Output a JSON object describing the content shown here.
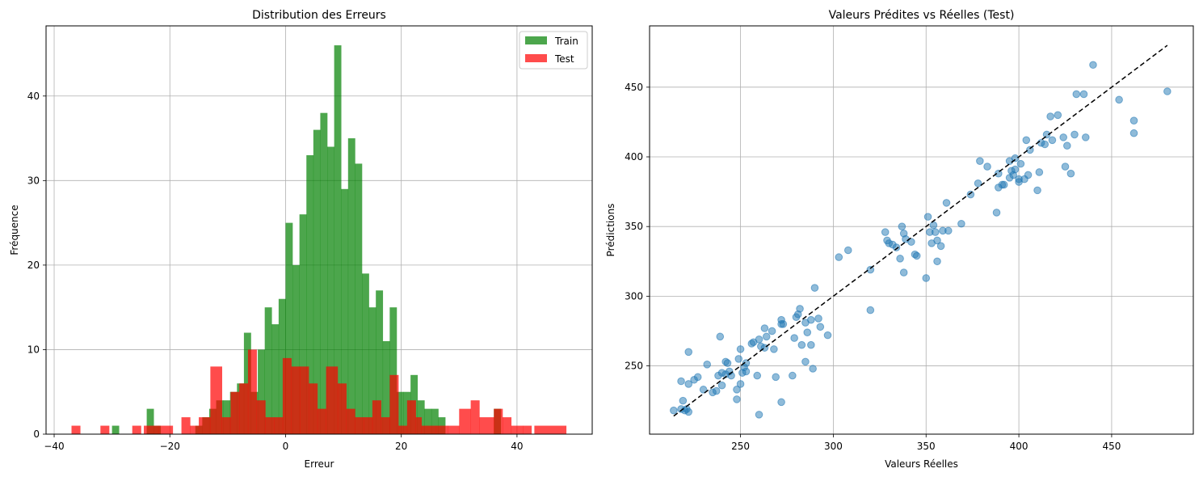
{
  "chart_data": [
    {
      "type": "histogram",
      "title": "Distribution des Erreurs",
      "xlabel": "Erreur",
      "ylabel": "Fréquence",
      "xlim": [
        -41.4,
        53.0
      ],
      "ylim": [
        0,
        48.3
      ],
      "xticks": [
        -40,
        -20,
        0,
        20,
        40
      ],
      "xtick_labels": [
        "−40",
        "−20",
        "0",
        "20",
        "40"
      ],
      "yticks": [
        0,
        10,
        20,
        30,
        40
      ],
      "ytick_labels": [
        "0",
        "10",
        "20",
        "30",
        "40"
      ],
      "grid": true,
      "legend_position": "top-right",
      "series": [
        {
          "name": "Train",
          "color": "#008000",
          "opacity": 0.7,
          "bin_start": -30.0,
          "bin_width": 1.2,
          "counts": [
            1,
            0,
            0,
            0,
            0,
            3,
            1,
            0,
            0,
            0,
            0,
            0,
            1,
            2,
            3,
            4,
            4,
            5,
            6,
            12,
            5,
            10,
            15,
            13,
            16,
            25,
            20,
            26,
            33,
            36,
            38,
            34,
            46,
            29,
            35,
            32,
            19,
            15,
            17,
            11,
            15,
            5,
            5,
            7,
            4,
            3,
            3,
            2,
            0,
            0,
            0,
            0,
            0,
            0,
            0,
            3
          ]
        },
        {
          "name": "Test",
          "color": "#ff0000",
          "opacity": 0.7,
          "bins": [
            [
              -37,
              -35.5,
              1
            ],
            [
              -32,
              -30.5,
              1
            ],
            [
              -26.5,
              -25,
              1
            ],
            [
              -24.5,
              -22,
              1
            ],
            [
              -22,
              -19.5,
              1
            ],
            [
              -18,
              -16.5,
              2
            ],
            [
              -16.5,
              -15,
              1
            ],
            [
              -15,
              -13,
              2
            ],
            [
              -13,
              -11,
              8
            ],
            [
              -11,
              -9.5,
              2
            ],
            [
              -9.5,
              -8,
              5
            ],
            [
              -8,
              -6.5,
              6
            ],
            [
              -6.5,
              -5,
              10
            ],
            [
              -5,
              -3.5,
              4
            ],
            [
              -3.5,
              -2,
              2
            ],
            [
              -2,
              -0.5,
              2
            ],
            [
              -0.5,
              1,
              9
            ],
            [
              1,
              2.5,
              8
            ],
            [
              2.5,
              4,
              8
            ],
            [
              4,
              5.5,
              6
            ],
            [
              5.5,
              7,
              3
            ],
            [
              7,
              9,
              8
            ],
            [
              9,
              10.5,
              6
            ],
            [
              10.5,
              12,
              3
            ],
            [
              12,
              13.5,
              2
            ],
            [
              13.5,
              15,
              2
            ],
            [
              15,
              16.5,
              4
            ],
            [
              16.5,
              18,
              2
            ],
            [
              18,
              19.5,
              7
            ],
            [
              19.5,
              21,
              1
            ],
            [
              21,
              22.5,
              4
            ],
            [
              22.5,
              23.5,
              2
            ],
            [
              23.5,
              26,
              1
            ],
            [
              26,
              28,
              1
            ],
            [
              28,
              30,
              1
            ],
            [
              30,
              32,
              3
            ],
            [
              32,
              33.5,
              4
            ],
            [
              33.5,
              36,
              2
            ],
            [
              36,
              37.5,
              3
            ],
            [
              37.5,
              39,
              2
            ],
            [
              39,
              41,
              1
            ],
            [
              41,
              42.5,
              1
            ],
            [
              43,
              48.5,
              1
            ]
          ]
        }
      ]
    },
    {
      "type": "scatter",
      "title": "Valeurs Prédites vs Réelles (Test)",
      "xlabel": "Valeurs Réelles",
      "ylabel": "Prédictions",
      "xlim": [
        201,
        494
      ],
      "ylim": [
        201,
        494
      ],
      "xticks": [
        250,
        300,
        350,
        400,
        450
      ],
      "xtick_labels": [
        "250",
        "300",
        "350",
        "400",
        "450"
      ],
      "yticks": [
        250,
        300,
        350,
        400,
        450
      ],
      "ytick_labels": [
        "250",
        "300",
        "350",
        "400",
        "450"
      ],
      "grid": true,
      "point_color": "#1f77b4",
      "point_opacity": 0.5,
      "reference_line": {
        "from": [
          214,
          214
        ],
        "to": [
          480,
          480
        ],
        "color": "#000000",
        "style": "dashed"
      },
      "points": [
        [
          214,
          218
        ],
        [
          218,
          219
        ],
        [
          218,
          239
        ],
        [
          219,
          225
        ],
        [
          220,
          218
        ],
        [
          221,
          219
        ],
        [
          222,
          217
        ],
        [
          222,
          237
        ],
        [
          222,
          260
        ],
        [
          225,
          240
        ],
        [
          227,
          242
        ],
        [
          230,
          233
        ],
        [
          232,
          251
        ],
        [
          235,
          231
        ],
        [
          237,
          232
        ],
        [
          238,
          243
        ],
        [
          239,
          271
        ],
        [
          240,
          236
        ],
        [
          240,
          245
        ],
        [
          242,
          253
        ],
        [
          242,
          244
        ],
        [
          243,
          252
        ],
        [
          244,
          246
        ],
        [
          245,
          243
        ],
        [
          248,
          226
        ],
        [
          248,
          233
        ],
        [
          249,
          255
        ],
        [
          250,
          262
        ],
        [
          250,
          237
        ],
        [
          251,
          245
        ],
        [
          252,
          249
        ],
        [
          253,
          252
        ],
        [
          253,
          246
        ],
        [
          256,
          266
        ],
        [
          257,
          267
        ],
        [
          259,
          243
        ],
        [
          260,
          215
        ],
        [
          260,
          269
        ],
        [
          261,
          264
        ],
        [
          263,
          277
        ],
        [
          263,
          263
        ],
        [
          264,
          271
        ],
        [
          267,
          275
        ],
        [
          268,
          262
        ],
        [
          269,
          242
        ],
        [
          272,
          283
        ],
        [
          272,
          280
        ],
        [
          272,
          224
        ],
        [
          273,
          280
        ],
        [
          278,
          243
        ],
        [
          279,
          270
        ],
        [
          280,
          285
        ],
        [
          281,
          287
        ],
        [
          282,
          291
        ],
        [
          283,
          265
        ],
        [
          285,
          281
        ],
        [
          285,
          253
        ],
        [
          286,
          274
        ],
        [
          288,
          283
        ],
        [
          288,
          265
        ],
        [
          289,
          248
        ],
        [
          290,
          306
        ],
        [
          292,
          284
        ],
        [
          293,
          278
        ],
        [
          297,
          272
        ],
        [
          303,
          328
        ],
        [
          308,
          333
        ],
        [
          320,
          290
        ],
        [
          320,
          319
        ],
        [
          328,
          346
        ],
        [
          329,
          340
        ],
        [
          330,
          338
        ],
        [
          332,
          337
        ],
        [
          334,
          335
        ],
        [
          336,
          327
        ],
        [
          337,
          350
        ],
        [
          338,
          345
        ],
        [
          338,
          317
        ],
        [
          339,
          341
        ],
        [
          342,
          339
        ],
        [
          344,
          330
        ],
        [
          345,
          329
        ],
        [
          350,
          313
        ],
        [
          351,
          357
        ],
        [
          352,
          346
        ],
        [
          353,
          338
        ],
        [
          354,
          351
        ],
        [
          355,
          346
        ],
        [
          356,
          325
        ],
        [
          356,
          340
        ],
        [
          358,
          336
        ],
        [
          359,
          347
        ],
        [
          361,
          367
        ],
        [
          362,
          347
        ],
        [
          369,
          352
        ],
        [
          374,
          373
        ],
        [
          378,
          381
        ],
        [
          379,
          397
        ],
        [
          383,
          393
        ],
        [
          388,
          360
        ],
        [
          389,
          388
        ],
        [
          389,
          378
        ],
        [
          391,
          380
        ],
        [
          392,
          380
        ],
        [
          395,
          385
        ],
        [
          395,
          397
        ],
        [
          396,
          390
        ],
        [
          397,
          387
        ],
        [
          398,
          391
        ],
        [
          398,
          399
        ],
        [
          400,
          382
        ],
        [
          400,
          384
        ],
        [
          401,
          395
        ],
        [
          403,
          384
        ],
        [
          404,
          412
        ],
        [
          405,
          387
        ],
        [
          406,
          405
        ],
        [
          410,
          376
        ],
        [
          411,
          389
        ],
        [
          412,
          410
        ],
        [
          414,
          409
        ],
        [
          415,
          416
        ],
        [
          417,
          429
        ],
        [
          418,
          412
        ],
        [
          421,
          430
        ],
        [
          424,
          414
        ],
        [
          425,
          393
        ],
        [
          426,
          408
        ],
        [
          428,
          388
        ],
        [
          430,
          416
        ],
        [
          431,
          445
        ],
        [
          435,
          445
        ],
        [
          436,
          414
        ],
        [
          440,
          466
        ],
        [
          454,
          441
        ],
        [
          462,
          417
        ],
        [
          462,
          426
        ],
        [
          480,
          447
        ]
      ]
    }
  ]
}
